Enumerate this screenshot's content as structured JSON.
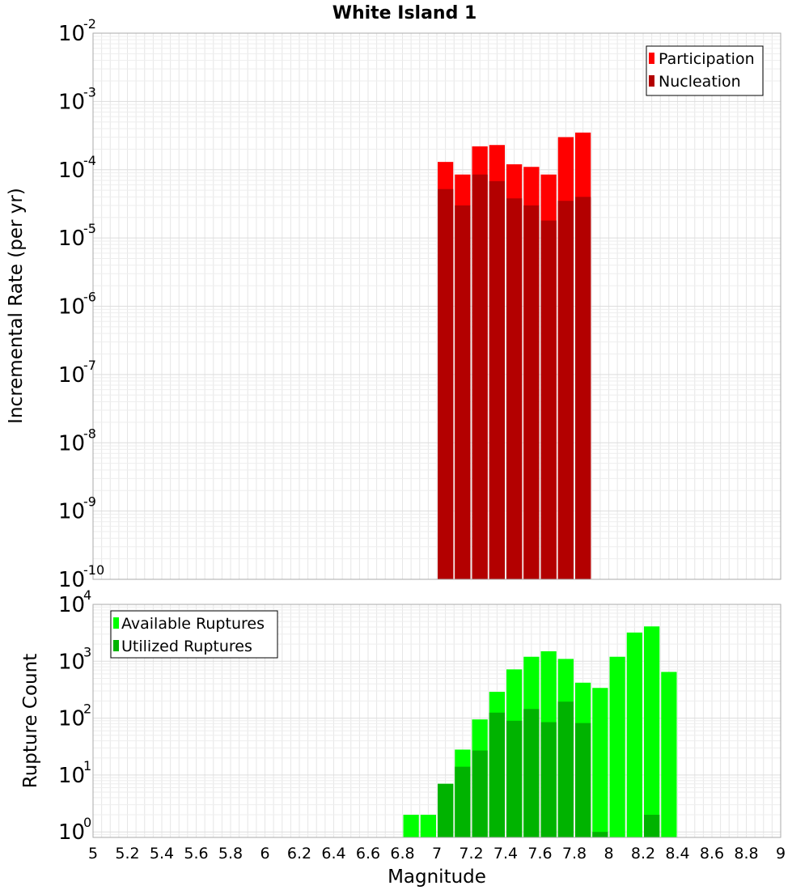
{
  "chart_data": [
    {
      "type": "bar",
      "title": "White Island 1",
      "xlabel": "",
      "ylabel": "Incremental Rate (per yr)",
      "yscale": "log",
      "ylim": [
        1e-10,
        0.01
      ],
      "xlim": [
        5,
        9
      ],
      "grid": true,
      "legend_position": "top-right",
      "ytick_labels": [
        {
          "base": "10",
          "exp": "-10"
        },
        {
          "base": "10",
          "exp": "-9"
        },
        {
          "base": "10",
          "exp": "-8"
        },
        {
          "base": "10",
          "exp": "-7"
        },
        {
          "base": "10",
          "exp": "-6"
        },
        {
          "base": "10",
          "exp": "-5"
        },
        {
          "base": "10",
          "exp": "-4"
        },
        {
          "base": "10",
          "exp": "-3"
        },
        {
          "base": "10",
          "exp": "-2"
        }
      ],
      "x": [
        7.05,
        7.15,
        7.25,
        7.35,
        7.45,
        7.55,
        7.65,
        7.75,
        7.85
      ],
      "series": [
        {
          "name": "Participation",
          "color": "#ff0000",
          "values": [
            0.00013,
            8.5e-05,
            0.00022,
            0.00023,
            0.00012,
            0.00011,
            8.5e-05,
            0.0003,
            0.00035
          ]
        },
        {
          "name": "Nucleation",
          "color": "#b30000",
          "values": [
            5.2e-05,
            3e-05,
            8.5e-05,
            6.8e-05,
            3.8e-05,
            3e-05,
            1.8e-05,
            3.5e-05,
            4e-05
          ]
        }
      ]
    },
    {
      "type": "bar",
      "title": "",
      "xlabel": "Magnitude",
      "ylabel": "Rupture Count",
      "yscale": "log",
      "ylim": [
        0.8,
        10000
      ],
      "xlim": [
        5,
        9
      ],
      "grid": true,
      "legend_position": "top-left",
      "ytick_labels": [
        {
          "base": "10",
          "exp": "0"
        },
        {
          "base": "10",
          "exp": "1"
        },
        {
          "base": "10",
          "exp": "2"
        },
        {
          "base": "10",
          "exp": "3"
        },
        {
          "base": "10",
          "exp": "4"
        }
      ],
      "xtick_labels": [
        "5",
        "5.2",
        "5.4",
        "5.6",
        "5.8",
        "6",
        "6.2",
        "6.4",
        "6.6",
        "6.8",
        "7",
        "7.2",
        "7.4",
        "7.6",
        "7.8",
        "8",
        "8.2",
        "8.4",
        "8.6",
        "8.8",
        "9"
      ],
      "x": [
        6.85,
        6.95,
        7.05,
        7.15,
        7.25,
        7.35,
        7.45,
        7.55,
        7.65,
        7.75,
        7.85,
        7.95,
        8.05,
        8.15,
        8.25,
        8.35
      ],
      "series": [
        {
          "name": "Available Ruptures",
          "color": "#00ff00",
          "values": [
            2,
            2,
            7,
            28,
            95,
            290,
            720,
            1200,
            1500,
            1100,
            420,
            340,
            1200,
            3200,
            4100,
            650
          ]
        },
        {
          "name": "Utilized Ruptures",
          "color": "#00b300",
          "values": [
            0,
            0,
            7,
            14,
            27,
            125,
            90,
            145,
            85,
            195,
            82,
            1,
            0,
            0,
            2,
            0
          ]
        }
      ]
    }
  ]
}
